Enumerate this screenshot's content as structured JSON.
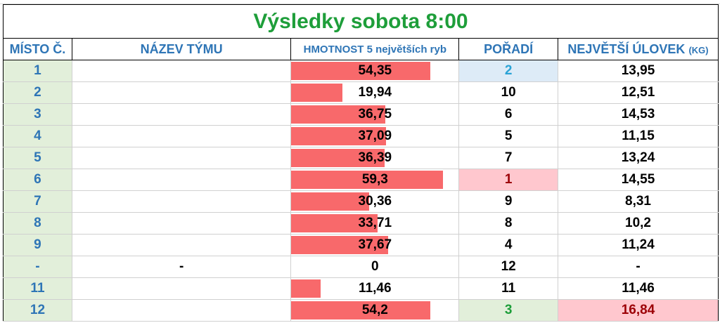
{
  "title": "Výsledky sobota 8:00",
  "headers": {
    "misto": "MÍSTO Č.",
    "tym": "NÁZEV TÝMU",
    "hmotnost": "HMOTNOST 5 největších ryb",
    "poradi": "POŘADÍ",
    "ulovek_main": "NEJVĚTŠÍ ÚLOVEK",
    "ulovek_unit": "(KG)"
  },
  "bar_scale_max": 59.3,
  "colors": {
    "bar": "#f8696b",
    "title": "#1e9e3a",
    "header_text": "#2e75b6",
    "misto_bg": "#e2efda"
  },
  "rows": [
    {
      "misto": "1",
      "tym": "",
      "hmotnost": "54,35",
      "hmot_value": 54.35,
      "poradi": "2",
      "ulovek": "13,95",
      "poradi_style": "rank-blue",
      "ulovek_style": ""
    },
    {
      "misto": "2",
      "tym": "",
      "hmotnost": "19,94",
      "hmot_value": 19.94,
      "poradi": "10",
      "ulovek": "12,51",
      "poradi_style": "",
      "ulovek_style": ""
    },
    {
      "misto": "3",
      "tym": "",
      "hmotnost": "36,75",
      "hmot_value": 36.75,
      "poradi": "6",
      "ulovek": "14,53",
      "poradi_style": "",
      "ulovek_style": ""
    },
    {
      "misto": "4",
      "tym": "",
      "hmotnost": "37,09",
      "hmot_value": 37.09,
      "poradi": "5",
      "ulovek": "11,15",
      "poradi_style": "",
      "ulovek_style": ""
    },
    {
      "misto": "5",
      "tym": "",
      "hmotnost": "36,39",
      "hmot_value": 36.39,
      "poradi": "7",
      "ulovek": "13,24",
      "poradi_style": "",
      "ulovek_style": ""
    },
    {
      "misto": "6",
      "tym": "",
      "hmotnost": "59,3",
      "hmot_value": 59.3,
      "poradi": "1",
      "ulovek": "14,55",
      "poradi_style": "rank-red",
      "ulovek_style": ""
    },
    {
      "misto": "7",
      "tym": "",
      "hmotnost": "30,36",
      "hmot_value": 30.36,
      "poradi": "9",
      "ulovek": "8,31",
      "poradi_style": "",
      "ulovek_style": ""
    },
    {
      "misto": "8",
      "tym": "",
      "hmotnost": "33,71",
      "hmot_value": 33.71,
      "poradi": "8",
      "ulovek": "10,2",
      "poradi_style": "",
      "ulovek_style": ""
    },
    {
      "misto": "9",
      "tym": "",
      "hmotnost": "37,67",
      "hmot_value": 37.67,
      "poradi": "4",
      "ulovek": "11,24",
      "poradi_style": "",
      "ulovek_style": ""
    },
    {
      "misto": "-",
      "tym": "-",
      "hmotnost": "0",
      "hmot_value": 0,
      "poradi": "12",
      "ulovek": "-",
      "poradi_style": "",
      "ulovek_style": ""
    },
    {
      "misto": "11",
      "tym": "",
      "hmotnost": "11,46",
      "hmot_value": 11.46,
      "poradi": "11",
      "ulovek": "11,46",
      "poradi_style": "",
      "ulovek_style": ""
    },
    {
      "misto": "12",
      "tym": "",
      "hmotnost": "54,2",
      "hmot_value": 54.2,
      "poradi": "3",
      "ulovek": "16,84",
      "poradi_style": "rank-green",
      "ulovek_style": "nej-red"
    }
  ]
}
